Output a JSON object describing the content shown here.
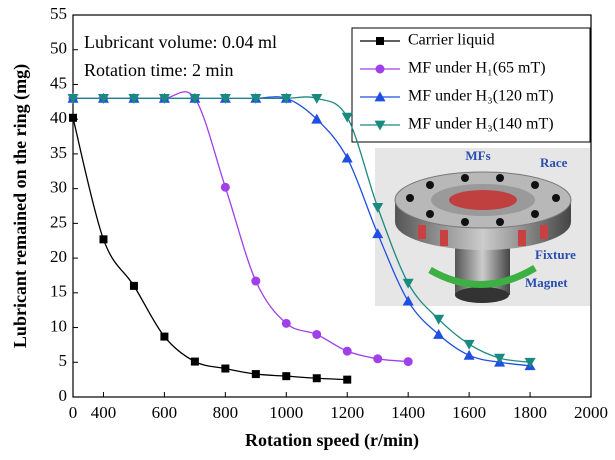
{
  "chart_data": {
    "type": "line",
    "xlabel": "Rotation speed (r/min)",
    "ylabel": "Lubricant remained on the ring (mg)",
    "annotations": [
      "Lubricant volume: 0.04 ml",
      "Rotation time: 2 min"
    ],
    "x": [
      300,
      400,
      500,
      600,
      700,
      800,
      900,
      1000,
      1100,
      1200,
      1300,
      1400,
      1500,
      1600,
      1700,
      1800
    ],
    "series": [
      {
        "name": "Carrier liquid",
        "color": "#000000",
        "marker": "square",
        "values": [
          40.2,
          22.7,
          16,
          8.7,
          5.1,
          4.1,
          3.3,
          3.0,
          2.7,
          2.5,
          null,
          null,
          null,
          null,
          null,
          null
        ]
      },
      {
        "name": "MF under H₁(65 mT)",
        "color": "#a040e8",
        "marker": "circle",
        "values": [
          43,
          43,
          43,
          43,
          43,
          30.2,
          16.7,
          10.6,
          9.0,
          6.6,
          5.5,
          5.1,
          null,
          null,
          null,
          null
        ]
      },
      {
        "name": "MF under H₃(120 mT)",
        "color": "#1f4fe0",
        "marker": "triangle-up",
        "values": [
          43,
          43,
          43,
          43,
          43,
          43,
          43,
          43,
          40,
          34.4,
          23.5,
          13.8,
          9,
          6,
          5,
          4.5
        ]
      },
      {
        "name": "MF under H₃(140 mT)",
        "color": "#1a8a80",
        "marker": "triangle-down",
        "values": [
          43,
          43,
          43,
          43,
          43,
          43,
          43,
          43,
          43,
          40.3,
          27.3,
          16.4,
          11.2,
          7.6,
          5.6,
          5.0
        ]
      }
    ],
    "xlim": [
      300,
      2000
    ],
    "xticks": [
      {
        "value": 300,
        "label": "0"
      },
      400,
      600,
      800,
      1000,
      1200,
      1400,
      1600,
      1800,
      2000
    ],
    "ylim": [
      0,
      55
    ],
    "yticks": [
      0,
      5,
      10,
      15,
      20,
      25,
      30,
      35,
      40,
      45,
      50,
      55
    ],
    "legend": "upper right",
    "inset_labels": [
      "MFs",
      "Race",
      "Fixture",
      "Magnet"
    ]
  }
}
